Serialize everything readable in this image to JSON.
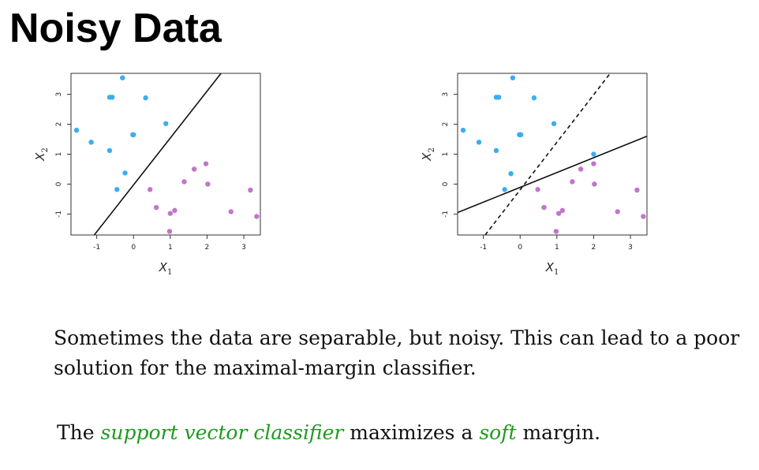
{
  "title": "Noisy Data",
  "colors": {
    "class_blue": "#3aaef0",
    "class_purple": "#c275c8",
    "line": "#111111",
    "emphasis": "#1e9a1e"
  },
  "chart_data": [
    {
      "type": "scatter",
      "title": "",
      "xlabel": "X",
      "xlabel_sub": "1",
      "ylabel": "X",
      "ylabel_sub": "2",
      "xlim": [
        -1.7,
        3.45
      ],
      "ylim": [
        -1.7,
        3.7
      ],
      "xticks": [
        "-1",
        "0",
        "1",
        "2",
        "3"
      ],
      "yticks": [
        "-1",
        "0",
        "1",
        "2",
        "3"
      ],
      "grid": false,
      "series": [
        {
          "color": "#3aaef0",
          "points": [
            [
              -0.3,
              3.55
            ],
            [
              -0.65,
              2.9
            ],
            [
              -0.58,
              2.9
            ],
            [
              0.33,
              2.88
            ],
            [
              0.88,
              2.02
            ],
            [
              -1.55,
              1.8
            ],
            [
              -0.02,
              1.65
            ],
            [
              0.0,
              1.65
            ],
            [
              -1.15,
              1.4
            ],
            [
              -0.65,
              1.12
            ],
            [
              -0.23,
              0.37
            ],
            [
              -0.45,
              -0.18
            ]
          ]
        },
        {
          "color": "#c275c8",
          "points": [
            [
              1.97,
              0.68
            ],
            [
              1.65,
              0.5
            ],
            [
              1.38,
              0.08
            ],
            [
              2.02,
              0.0
            ],
            [
              0.45,
              -0.18
            ],
            [
              3.18,
              -0.2
            ],
            [
              0.62,
              -0.78
            ],
            [
              1.12,
              -0.88
            ],
            [
              1.0,
              -0.98
            ],
            [
              2.65,
              -0.92
            ],
            [
              3.35,
              -1.08
            ],
            [
              0.98,
              -1.58
            ]
          ]
        }
      ],
      "lines": [
        {
          "style": "solid",
          "x": [
            -1.1,
            2.38
          ],
          "y": [
            -1.75,
            3.7
          ]
        }
      ]
    },
    {
      "type": "scatter",
      "title": "",
      "xlabel": "X",
      "xlabel_sub": "1",
      "ylabel": "X",
      "ylabel_sub": "2",
      "xlim": [
        -1.7,
        3.45
      ],
      "ylim": [
        -1.7,
        3.7
      ],
      "xticks": [
        "-1",
        "0",
        "1",
        "2",
        "3"
      ],
      "yticks": [
        "-1",
        "0",
        "1",
        "2",
        "3"
      ],
      "grid": false,
      "series": [
        {
          "color": "#3aaef0",
          "points": [
            [
              -0.2,
              3.55
            ],
            [
              -0.65,
              2.9
            ],
            [
              -0.58,
              2.9
            ],
            [
              0.38,
              2.88
            ],
            [
              0.92,
              2.02
            ],
            [
              -1.55,
              1.8
            ],
            [
              -0.02,
              1.65
            ],
            [
              0.02,
              1.65
            ],
            [
              -1.12,
              1.4
            ],
            [
              -0.65,
              1.12
            ],
            [
              -0.25,
              0.35
            ],
            [
              -0.42,
              -0.18
            ],
            [
              2.0,
              1.0
            ]
          ]
        },
        {
          "color": "#c275c8",
          "points": [
            [
              2.0,
              0.68
            ],
            [
              1.65,
              0.5
            ],
            [
              1.42,
              0.08
            ],
            [
              2.02,
              0.0
            ],
            [
              0.48,
              -0.18
            ],
            [
              3.18,
              -0.2
            ],
            [
              0.65,
              -0.78
            ],
            [
              1.15,
              -0.88
            ],
            [
              1.05,
              -0.98
            ],
            [
              2.65,
              -0.92
            ],
            [
              3.35,
              -1.08
            ],
            [
              0.98,
              -1.58
            ]
          ]
        }
      ],
      "lines": [
        {
          "style": "solid",
          "x": [
            -1.7,
            3.45
          ],
          "y": [
            -0.95,
            1.6
          ]
        },
        {
          "style": "dashed",
          "x": [
            -0.95,
            2.45
          ],
          "y": [
            -1.7,
            3.7
          ]
        }
      ]
    }
  ],
  "paragraph_1": "Sometimes the data are separable, but noisy. This can lead to a poor solution for the maximal-margin classifier.",
  "paragraph_2": {
    "part_1": "The ",
    "emph_1": "support vector classifier",
    "part_2": " maximizes a ",
    "emph_2": "soft",
    "part_3": " margin."
  }
}
